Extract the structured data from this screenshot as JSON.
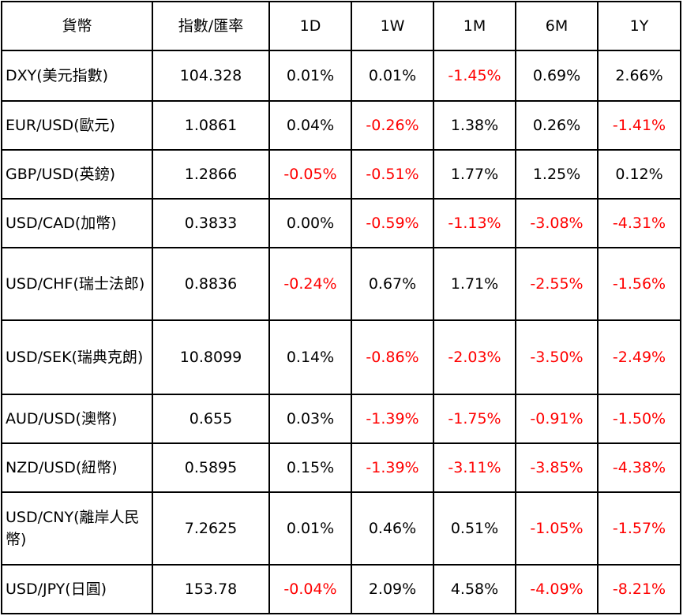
{
  "table": {
    "header": [
      "貨幣",
      "指數/匯率",
      "1D",
      "1W",
      "1M",
      "6M",
      "1Y"
    ],
    "rows": [
      [
        "DXY(美元指數)",
        "104.328",
        "0.01%",
        "0.01%",
        "-1.45%",
        "0.69%",
        "2.66%"
      ],
      [
        "EUR/USD(歐元)",
        "1.0861",
        "0.04%",
        "-0.26%",
        "1.38%",
        "0.26%",
        "-1.41%"
      ],
      [
        "GBP/USD(英鎊)",
        "1.2866",
        "-0.05%",
        "-0.51%",
        "1.77%",
        "1.25%",
        "0.12%"
      ],
      [
        "USD/CAD(加幣)",
        "0.3833",
        "0.00%",
        "-0.59%",
        "-1.13%",
        "-3.08%",
        "-4.31%"
      ],
      [
        "USD/CHF(瑞士法郎)",
        "0.8836",
        "-0.24%",
        "0.67%",
        "1.71%",
        "-2.55%",
        "-1.56%"
      ],
      [
        "USD/SEK(瑞典克朗)",
        "10.8099",
        "0.14%",
        "-0.86%",
        "-2.03%",
        "-3.50%",
        "-2.49%"
      ],
      [
        "AUD/USD(澳幣)",
        "0.655",
        "0.03%",
        "-1.39%",
        "-1.75%",
        "-0.91%",
        "-1.50%"
      ],
      [
        "NZD/USD(紐幣)",
        "0.5895",
        "0.15%",
        "-1.39%",
        "-3.11%",
        "-3.85%",
        "-4.38%"
      ],
      [
        "USD/CNY(離岸人民幣)",
        "7.2625",
        "0.01%",
        "0.46%",
        "0.51%",
        "-1.05%",
        "-1.57%"
      ],
      [
        "USD/JPY(日圓)",
        "153.78",
        "-0.04%",
        "2.09%",
        "4.58%",
        "-4.09%",
        "-8.21%"
      ]
    ]
  }
}
